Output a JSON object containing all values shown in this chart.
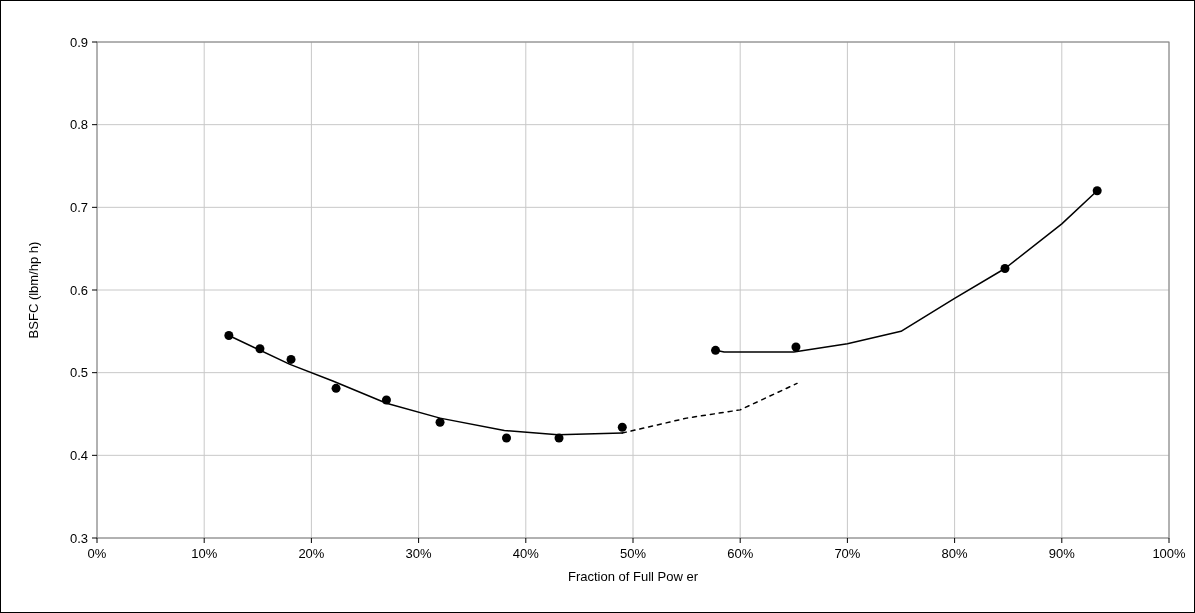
{
  "chart_data": {
    "type": "scatter",
    "xlabel": "Fraction of Full Pow er",
    "ylabel": "BSFC (lbm/hp h)",
    "xlim": [
      0,
      100
    ],
    "xticks": [
      {
        "value": 0,
        "label": "0%"
      },
      {
        "value": 10,
        "label": "10%"
      },
      {
        "value": 20,
        "label": "20%"
      },
      {
        "value": 30,
        "label": "30%"
      },
      {
        "value": 40,
        "label": "40%"
      },
      {
        "value": 50,
        "label": "50%"
      },
      {
        "value": 60,
        "label": "60%"
      },
      {
        "value": 70,
        "label": "70%"
      },
      {
        "value": 80,
        "label": "80%"
      },
      {
        "value": 90,
        "label": "90%"
      },
      {
        "value": 100,
        "label": "100%"
      }
    ],
    "ylim": [
      0.3,
      0.9
    ],
    "yticks": [
      0.3,
      0.4,
      0.5,
      0.6,
      0.7,
      0.8,
      0.9
    ],
    "grid": true,
    "series": [
      {
        "color": "#000000",
        "marker": "circle",
        "x": [
          12.3,
          15.2,
          18.1,
          22.3,
          27,
          32,
          38.2,
          43.1,
          49,
          57.7,
          65.2,
          84.7,
          93.3
        ],
        "values": [
          0.545,
          0.529,
          0.516,
          0.481,
          0.467,
          0.44,
          0.421,
          0.421,
          0.434,
          0.527,
          0.531,
          0.626,
          0.72
        ]
      },
      {
        "type": "line",
        "color": "#000000",
        "line_style": "solid",
        "x": [
          12.3,
          18,
          22,
          27,
          32,
          38,
          43,
          49
        ],
        "values": [
          0.545,
          0.51,
          0.49,
          0.463,
          0.445,
          0.43,
          0.425,
          0.427
        ]
      },
      {
        "type": "line",
        "color": "#000000",
        "line_style": "dashed",
        "x": [
          49,
          55,
          60,
          65.3
        ],
        "values": [
          0.427,
          0.445,
          0.455,
          0.487
        ]
      },
      {
        "type": "line",
        "color": "#000000",
        "line_style": "solid",
        "x": [
          57.7,
          58.5,
          65,
          70,
          75,
          80,
          84.7,
          90,
          93.3
        ],
        "values": [
          0.527,
          0.525,
          0.525,
          0.535,
          0.55,
          0.59,
          0.626,
          0.68,
          0.72
        ]
      }
    ]
  }
}
